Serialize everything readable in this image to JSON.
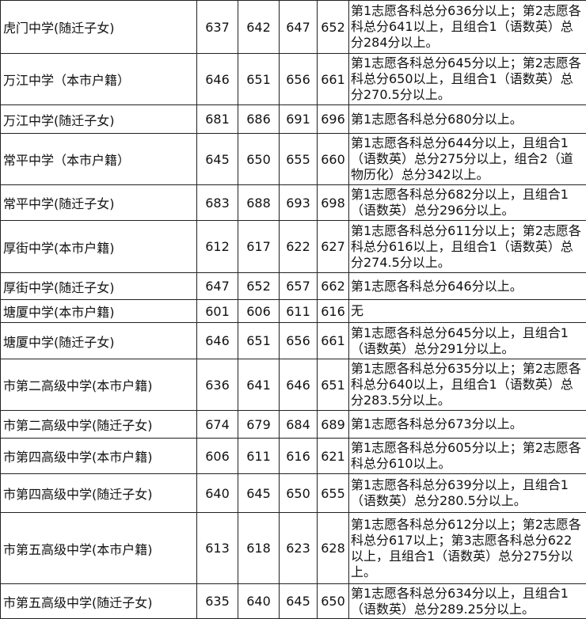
{
  "table": {
    "rows": [
      [
        "虎门中学(随迁子女)",
        637,
        642,
        647,
        652,
        "第1志愿各科总分636分以上；第2志愿各科总分641以上，且组合1（语数英）总分284分以上。"
      ],
      [
        "万江中学（本市户籍）",
        646,
        651,
        656,
        661,
        "第1志愿各科总分645分以上；第2志愿各科总分650以上，且组合1（语数英）总分270.5分以上。"
      ],
      [
        "万江中学(随迁子女)",
        681,
        686,
        691,
        696,
        "第1志愿各科总分680分以上。"
      ],
      [
        "常平中学（本市户籍）",
        645,
        650,
        655,
        660,
        "第1志愿各科总分644分以上，且组合1（语数英）总分275分以上，组合2（道物历化）总分342以上。"
      ],
      [
        "常平中学(随迁子女)",
        683,
        688,
        693,
        698,
        "第1志愿各科总分682分以上，且组合1（语数英）总分296分以上。"
      ],
      [
        "厚街中学(本市户籍)",
        612,
        617,
        622,
        627,
        "第1志愿各科总分611分以上；第2志愿各科总分616以上，且组合1（语数英）总分274.5分以上。"
      ],
      [
        "厚街中学(随迁子女)",
        647,
        652,
        657,
        662,
        "第1志愿各科总分646分以上。"
      ],
      [
        "塘厦中学(本市户籍)",
        601,
        606,
        611,
        616,
        "无"
      ],
      [
        "塘厦中学(随迁子女)",
        646,
        651,
        656,
        661,
        "第1志愿各科总分645分以上，且组合1（语数英）总分291分以上。"
      ],
      [
        "市第二高级中学(本市户籍)",
        636,
        641,
        646,
        651,
        "第1志愿各科总分635分以上；第2志愿各科总分640以上，且组合1（语数英）总分283.5分以上。"
      ],
      [
        "市第二高级中学(随迁子女)",
        674,
        679,
        684,
        689,
        "第1志愿各科总分673分以上。"
      ],
      [
        "市第四高级中学(本市户籍)",
        606,
        611,
        616,
        621,
        "第1志愿各科总分605分以上；第2志愿各科总分610以上。"
      ],
      [
        "市第四高级中学(随迁子女)",
        640,
        645,
        650,
        655,
        "第1志愿各科总分639分以上，且组合1（语数英）总分280.5分以上。"
      ],
      [
        "市第五高级中学(本市户籍)",
        613,
        618,
        623,
        628,
        "第1志愿各科总分612分以上；第2志愿各科总分617以上；第3志愿各科总分622以上，且组合1（语数英）总分275分以上。"
      ],
      [
        "市第五高级中学(随迁子女)",
        635,
        640,
        645,
        650,
        "第1志愿各科总分634分以上，且组合1（语数英）总分289.25分以上。"
      ]
    ]
  }
}
